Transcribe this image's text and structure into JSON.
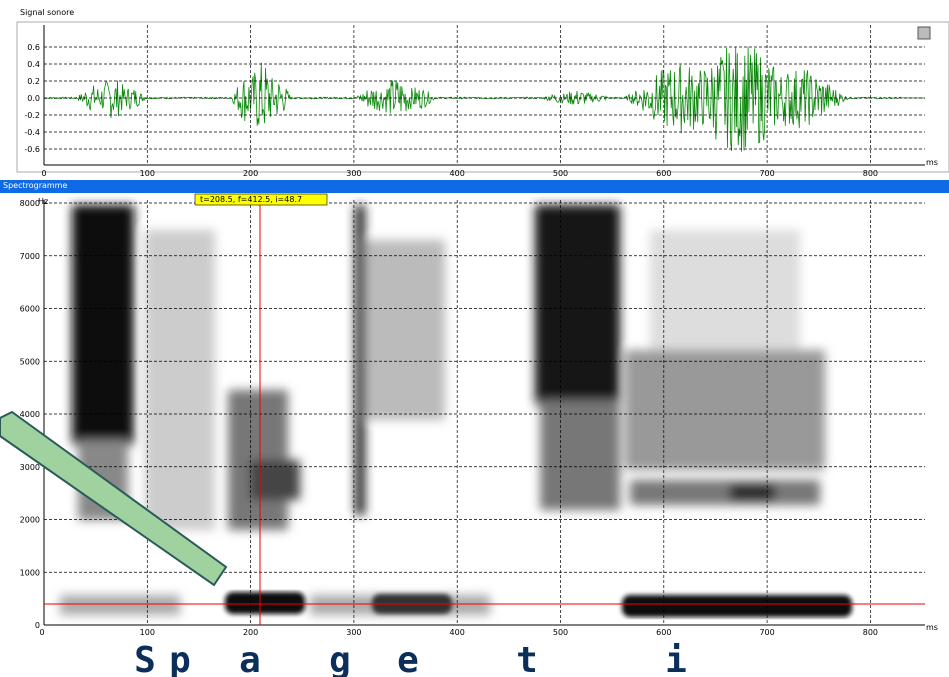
{
  "signal_panel": {
    "title": "Signal sonore",
    "yticks": [
      "0.6",
      "0.4",
      "0.2",
      "0.0",
      "-0.2",
      "-0.4",
      "-0.6"
    ],
    "xticks": [
      "0",
      "100",
      "200",
      "300",
      "400",
      "500",
      "600",
      "700",
      "800"
    ],
    "x_unit": "ms"
  },
  "spectrogram_panel": {
    "title": "Spectrogramme",
    "yticks": [
      "8000",
      "7000",
      "6000",
      "5000",
      "4000",
      "3000",
      "2000",
      "1000",
      "0"
    ],
    "y_unit": "Hz",
    "xticks": [
      "0",
      "100",
      "200",
      "300",
      "400",
      "500",
      "600",
      "700",
      "800"
    ],
    "x_unit": "ms",
    "cursor_readout": "t=208.5, f=412.5, i=48.7"
  },
  "transcription": [
    "S",
    "p",
    "a",
    "g",
    "e",
    "t",
    "i"
  ]
}
